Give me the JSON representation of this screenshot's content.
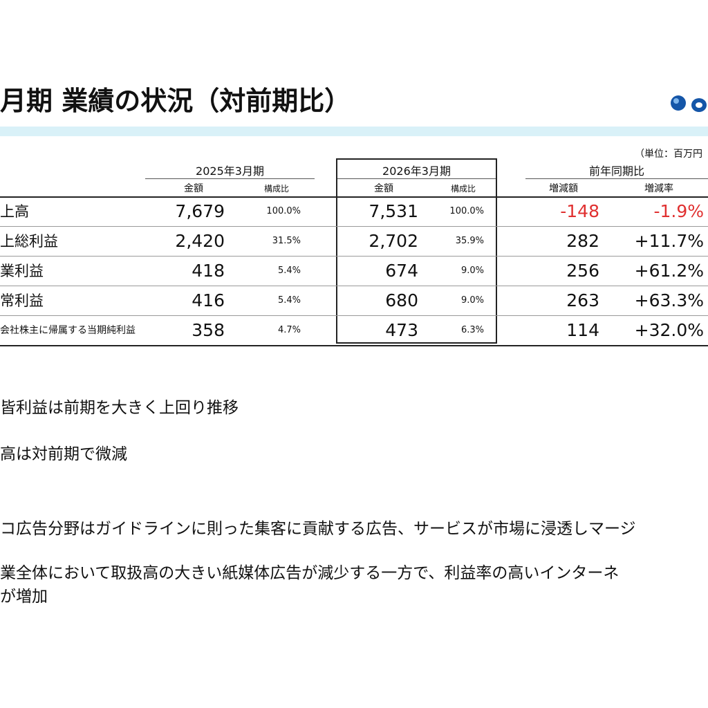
{
  "header": {
    "title": "月期 業績の状況（対前期比）"
  },
  "logo": {
    "name": "company-logo"
  },
  "unit_note": "（単位：百万円",
  "periods": {
    "p2025": {
      "label": "2025年3月期",
      "amount": "金額",
      "ratio": "構成比"
    },
    "p2026": {
      "label": "2026年3月期",
      "amount": "金額",
      "ratio": "構成比"
    },
    "yoy": {
      "label": "前年同期比",
      "diff": "増減額",
      "rate": "増減率"
    }
  },
  "rows": [
    {
      "label": "上高",
      "a2025": "7,679",
      "r2025": "100.0%",
      "a2026": "7,531",
      "r2026": "100.0%",
      "diff": "-148",
      "rate": "-1.9%"
    },
    {
      "label": "上総利益",
      "a2025": "2,420",
      "r2025": "31.5%",
      "a2026": "2,702",
      "r2026": "35.9%",
      "diff": "282",
      "rate": "+11.7%"
    },
    {
      "label": "業利益",
      "a2025": "418",
      "r2025": "5.4%",
      "a2026": "674",
      "r2026": "9.0%",
      "diff": "256",
      "rate": "+61.2%"
    },
    {
      "label": "常利益",
      "a2025": "416",
      "r2025": "5.4%",
      "a2026": "680",
      "r2026": "9.0%",
      "diff": "263",
      "rate": "+63.3%"
    },
    {
      "label": "会社株主に帰属する当期純利益",
      "a2025": "358",
      "r2025": "4.7%",
      "a2026": "473",
      "r2026": "6.3%",
      "diff": "114",
      "rate": "+32.0%"
    }
  ],
  "bullets": [
    "皆利益は前期を大きく上回り推移",
    "高は対前期で微減",
    "コ広告分野はガイドラインに則った集客に貢献する広告、サービスが市場に浸透しマージ",
    "業全体において取扱高の大きい紙媒体広告が減少する一方で、利益率の高いインターネ",
    "が増加"
  ],
  "colors": {
    "negative": "#e03030",
    "title_bar": "#d9f1f8",
    "logo": "#1556a8"
  }
}
